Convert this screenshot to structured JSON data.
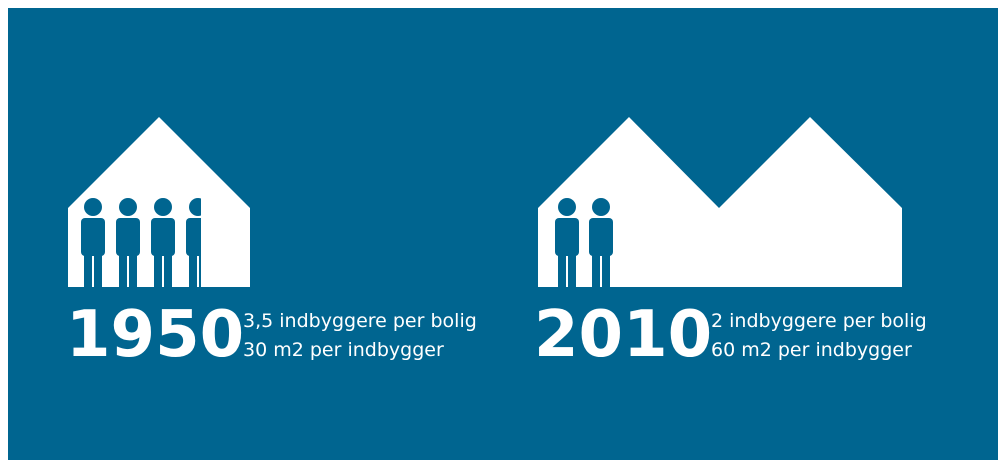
{
  "panels": [
    {
      "year": "1950",
      "lines": [
        "3,5 indbyggere per bolig",
        "30 m2 per indbygger"
      ]
    },
    {
      "year": "2010",
      "lines": [
        "2 indbyggere per bolig",
        "60 m2 per indbygger"
      ]
    }
  ]
}
